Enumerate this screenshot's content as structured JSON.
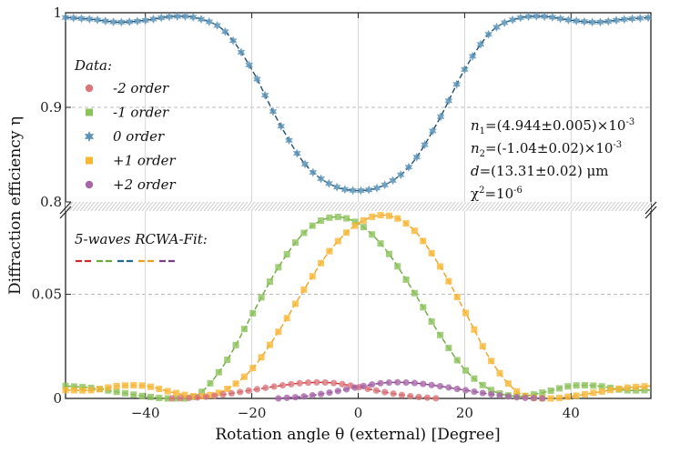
{
  "chart_data": {
    "type": "scatter",
    "title": "",
    "xlabel": "Rotation angle θ (external) [Degree]",
    "ylabel": "Diffraction efficiency η",
    "xlim": [
      -55,
      55
    ],
    "x_ticks": [
      -40,
      -20,
      0,
      20,
      40
    ],
    "x_tick_labels": [
      "−40",
      "−20",
      "0",
      "20",
      "40"
    ],
    "y_ticks": [
      {
        "value": 0,
        "label": "0"
      },
      {
        "value": 0.05,
        "label": "0.05"
      },
      {
        "value": 0.8,
        "label": "0.8"
      },
      {
        "value": 0.9,
        "label": "0.9"
      },
      {
        "value": 1.0,
        "label": "1"
      }
    ],
    "y_broken_axis": {
      "lower_range": [
        0,
        0.09
      ],
      "upper_range": [
        0.8,
        1.0
      ]
    },
    "grid": "horizontal dashed",
    "legend": {
      "data_title": "Data:",
      "position": "left",
      "entries": [
        {
          "label": "-2 order",
          "marker": "circle",
          "color": "#d9777c"
        },
        {
          "label": "-1 order",
          "marker": "square",
          "color": "#8cc25a"
        },
        {
          "label": "0 order",
          "marker": "star",
          "color": "#5b93b8"
        },
        {
          "label": "+1 order",
          "marker": "square",
          "color": "#f7b733"
        },
        {
          "label": "+2 order",
          "marker": "circle",
          "color": "#a866a8"
        }
      ],
      "fit_title": "5-waves RCWA-Fit:",
      "fit_colors": [
        "#d62728",
        "#6aaa3a",
        "#1f6a99",
        "#f0a020",
        "#7d3c8c"
      ]
    },
    "annotations": {
      "n1": "=(4.944±0.005)×10",
      "n1_exp": "-3",
      "n2": "=(-1.04±0.02)×10",
      "n2_exp": "-3",
      "d": "=(13.31±0.02) μm",
      "chi": "χ",
      "chi_val": "=10",
      "chi_exp": "-6"
    },
    "series": [
      {
        "name": "0 order",
        "color": "#5b93b8",
        "fit_color": "#1f4e6e",
        "x": [
          -55,
          -50,
          -45,
          -40,
          -35,
          -30,
          -25,
          -20,
          -15,
          -10,
          -5,
          0,
          5,
          10,
          15,
          20,
          25,
          30,
          35,
          40,
          45,
          50,
          55
        ],
        "y": [
          0.995,
          0.993,
          0.99,
          0.992,
          0.996,
          0.994,
          0.98,
          0.94,
          0.885,
          0.84,
          0.818,
          0.812,
          0.818,
          0.84,
          0.885,
          0.94,
          0.98,
          0.994,
          0.996,
          0.992,
          0.99,
          0.993,
          0.995
        ]
      },
      {
        "name": "-1 order",
        "color": "#8cc25a",
        "fit_color": "#6aaa3a",
        "x": [
          -55,
          -50,
          -45,
          -40,
          -35,
          -30,
          -25,
          -20,
          -15,
          -10,
          -5,
          0,
          5,
          10,
          15,
          20,
          25,
          30,
          35,
          40,
          45,
          50,
          55
        ],
        "y": [
          0.006,
          0.005,
          0.003,
          0.001,
          0.0,
          0.002,
          0.017,
          0.04,
          0.063,
          0.08,
          0.087,
          0.084,
          0.072,
          0.053,
          0.032,
          0.014,
          0.004,
          0.001,
          0.003,
          0.006,
          0.006,
          0.004,
          0.004
        ]
      },
      {
        "name": "+1 order",
        "color": "#f7b733",
        "fit_color": "#f0a020",
        "x": [
          -55,
          -50,
          -45,
          -40,
          -35,
          -30,
          -25,
          -20,
          -15,
          -10,
          -5,
          0,
          5,
          10,
          15,
          20,
          25,
          30,
          35,
          40,
          45,
          50,
          55
        ],
        "y": [
          0.004,
          0.004,
          0.006,
          0.006,
          0.003,
          0.001,
          0.004,
          0.014,
          0.032,
          0.053,
          0.072,
          0.084,
          0.088,
          0.082,
          0.065,
          0.042,
          0.018,
          0.003,
          0.0,
          0.001,
          0.003,
          0.005,
          0.006
        ]
      },
      {
        "name": "-2 order",
        "color": "#d9777c",
        "fit_color": "#d62728",
        "x": [
          -35,
          -30,
          -25,
          -20,
          -15,
          -10,
          -5,
          0,
          5,
          10,
          15
        ],
        "y": [
          0.0,
          0.0005,
          0.002,
          0.004,
          0.006,
          0.0075,
          0.0075,
          0.0055,
          0.003,
          0.001,
          0.0
        ]
      },
      {
        "name": "+2 order",
        "color": "#a866a8",
        "fit_color": "#7d3c8c",
        "x": [
          -15,
          -10,
          -5,
          0,
          5,
          10,
          15,
          20,
          25,
          30,
          35
        ],
        "y": [
          0.0,
          0.001,
          0.003,
          0.0055,
          0.0075,
          0.0075,
          0.006,
          0.004,
          0.002,
          0.0005,
          0.0
        ]
      }
    ]
  }
}
